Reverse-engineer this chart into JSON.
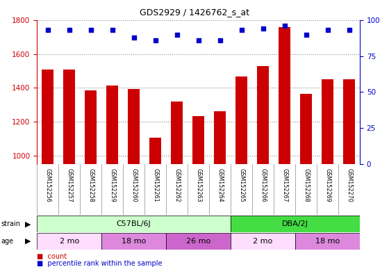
{
  "title": "GDS2929 / 1426762_s_at",
  "samples": [
    "GSM152256",
    "GSM152257",
    "GSM152258",
    "GSM152259",
    "GSM152260",
    "GSM152261",
    "GSM152262",
    "GSM152263",
    "GSM152264",
    "GSM152265",
    "GSM152266",
    "GSM152267",
    "GSM152268",
    "GSM152269",
    "GSM152270"
  ],
  "counts": [
    1510,
    1510,
    1385,
    1415,
    1395,
    1108,
    1320,
    1232,
    1262,
    1468,
    1530,
    1760,
    1365,
    1452,
    1452
  ],
  "percentile_ranks": [
    93,
    93,
    93,
    93,
    88,
    86,
    90,
    86,
    86,
    93,
    94,
    96,
    90,
    93,
    93
  ],
  "ylim_left": [
    950,
    1800
  ],
  "ylim_right": [
    0,
    100
  ],
  "yticks_left": [
    1000,
    1200,
    1400,
    1600,
    1800
  ],
  "yticks_right": [
    0,
    25,
    50,
    75,
    100
  ],
  "bar_color": "#cc0000",
  "dot_color": "#0000cc",
  "strain_groups": [
    {
      "label": "C57BL/6J",
      "start": 0,
      "end": 9,
      "color": "#ccffcc"
    },
    {
      "label": "DBA/2J",
      "start": 9,
      "end": 15,
      "color": "#44dd44"
    }
  ],
  "age_groups": [
    {
      "label": "2 mo",
      "start": 0,
      "end": 3,
      "color": "#ffddff"
    },
    {
      "label": "18 mo",
      "start": 3,
      "end": 6,
      "color": "#dd88dd"
    },
    {
      "label": "26 mo",
      "start": 6,
      "end": 9,
      "color": "#cc66cc"
    },
    {
      "label": "2 mo",
      "start": 9,
      "end": 12,
      "color": "#ffddff"
    },
    {
      "label": "18 mo",
      "start": 12,
      "end": 15,
      "color": "#dd88dd"
    }
  ],
  "ylabel_left_color": "#cc0000",
  "ylabel_right_color": "#0000cc",
  "background_color": "#ffffff",
  "grid_color": "#888888",
  "tick_bg_color": "#cccccc"
}
